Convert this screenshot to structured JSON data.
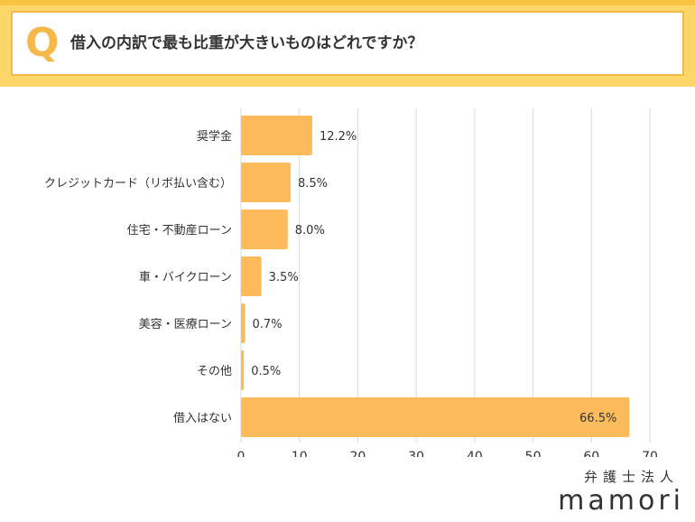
{
  "header": {
    "q_mark": "Q",
    "question": "借入の内訳で最も比重が大きいものはどれですか？"
  },
  "brand": {
    "subtitle": "弁護士法人",
    "name": "mamori"
  },
  "colors": {
    "bar": "#fdbc5b",
    "accent": "#f5b94a",
    "grid": "#d9d9d9",
    "text": "#333333"
  },
  "chart_data": {
    "type": "bar",
    "orientation": "horizontal",
    "title": "借入の内訳で最も比重が大きいものはどれですか？",
    "categories": [
      "奨学金",
      "クレジットカード（リボ払い含む）",
      "住宅・不動産ローン",
      "車・バイクローン",
      "美容・医療ローン",
      "その他",
      "借入はない"
    ],
    "values": [
      12.2,
      8.5,
      8.0,
      3.5,
      0.7,
      0.5,
      66.5
    ],
    "labels": [
      "12.2%",
      "8.5%",
      "8.0%",
      "3.5%",
      "0.7%",
      "0.5%",
      "66.5%"
    ],
    "xlim": [
      0,
      70
    ],
    "xticks": [
      0,
      10,
      20,
      30,
      40,
      50,
      60,
      70
    ],
    "grid": true,
    "xlabel": "",
    "ylabel": ""
  }
}
